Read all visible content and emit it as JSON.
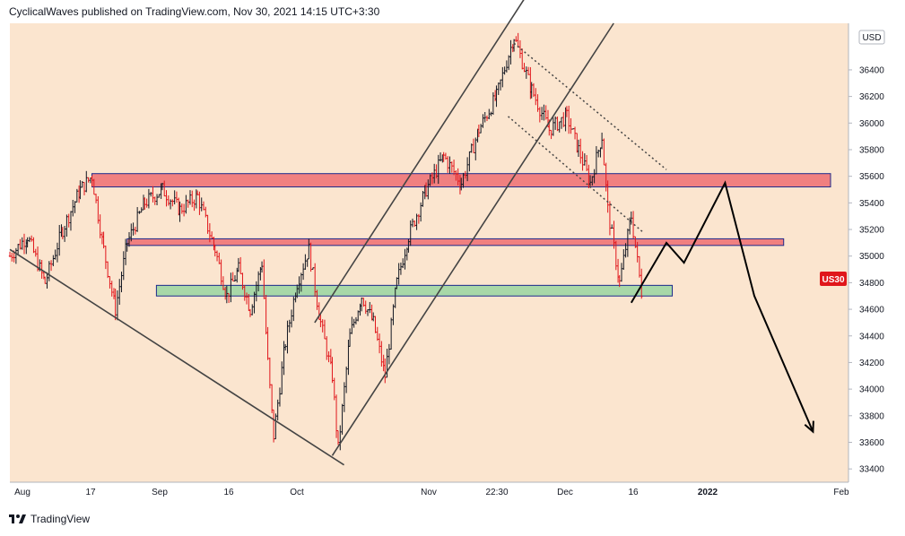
{
  "header": {
    "author": "CyclicalWaves",
    "published_text": "published on TradingView.com, Nov 30, 2021 14:15 UTC+3:30"
  },
  "footer": {
    "brand": "TradingView"
  },
  "colors": {
    "background": "#fbe5cf",
    "up_bar": "#131722",
    "down_bar": "#e0161b",
    "resistance_zone": "#f08080",
    "support_zone": "#a8d8a8",
    "zone_border": "#1c2a8c",
    "price_badge": "#e0161b",
    "trend_line": "#444444"
  },
  "chart_data": {
    "type": "candlestick",
    "symbol": "US30",
    "currency_label": "USD",
    "last_price_label": "US30",
    "y_ticks": [
      33400,
      33600,
      33800,
      34000,
      34200,
      34400,
      34600,
      34800,
      35000,
      35200,
      35400,
      35600,
      35800,
      36000,
      36200,
      36400
    ],
    "ylim": [
      33300,
      36750
    ],
    "x_labels": [
      "Aug",
      "17",
      "Sep",
      "16",
      "Oct",
      "Nov",
      "22:30",
      "Dec",
      "16",
      "2022",
      "Feb"
    ],
    "x_label_bold": [
      "2022"
    ],
    "path_points": [
      [
        0,
        35000
      ],
      [
        3,
        35150
      ],
      [
        6,
        34800
      ],
      [
        9,
        35200
      ],
      [
        12,
        35500
      ],
      [
        14,
        35600
      ],
      [
        16,
        35050
      ],
      [
        18,
        34600
      ],
      [
        20,
        35100
      ],
      [
        23,
        35400
      ],
      [
        26,
        35500
      ],
      [
        29,
        35350
      ],
      [
        32,
        35450
      ],
      [
        35,
        35050
      ],
      [
        37,
        34700
      ],
      [
        39,
        34900
      ],
      [
        41,
        34600
      ],
      [
        43,
        34950
      ],
      [
        44,
        34200
      ],
      [
        45,
        33650
      ],
      [
        47,
        34350
      ],
      [
        49,
        34800
      ],
      [
        51,
        35050
      ],
      [
        53,
        34500
      ],
      [
        55,
        34100
      ],
      [
        56,
        33550
      ],
      [
        58,
        34400
      ],
      [
        60,
        34700
      ],
      [
        62,
        34500
      ],
      [
        64,
        34100
      ],
      [
        66,
        34800
      ],
      [
        68,
        35150
      ],
      [
        71,
        35500
      ],
      [
        74,
        35750
      ],
      [
        77,
        35550
      ],
      [
        80,
        35950
      ],
      [
        83,
        36200
      ],
      [
        86,
        36650
      ],
      [
        89,
        36250
      ],
      [
        92,
        35950
      ],
      [
        95,
        36050
      ],
      [
        97,
        35800
      ],
      [
        99,
        35550
      ],
      [
        101,
        35900
      ],
      [
        102,
        35350
      ],
      [
        104,
        34800
      ],
      [
        106,
        35300
      ],
      [
        108,
        34650
      ]
    ],
    "zones": [
      {
        "name": "upper-resistance",
        "kind": "resistance",
        "low": 35520,
        "high": 35620,
        "from": 14,
        "to": 140
      },
      {
        "name": "middle-resistance",
        "kind": "resistance",
        "low": 35080,
        "high": 35130,
        "from": 20,
        "to": 132
      },
      {
        "name": "support",
        "kind": "support",
        "low": 34700,
        "high": 34780,
        "from": 25,
        "to": 113
      }
    ],
    "trend_lines": [
      {
        "name": "lower-wedge-line",
        "style": "solid",
        "from": [
          0,
          35050
        ],
        "to": [
          57,
          33430
        ]
      },
      {
        "name": "channel-upper",
        "style": "solid",
        "from": [
          52,
          34500
        ],
        "to": [
          88,
          36950
        ]
      },
      {
        "name": "channel-lower",
        "style": "solid",
        "from": [
          55,
          33500
        ],
        "to": [
          103,
          36750
        ]
      },
      {
        "name": "descending-dotted-upper",
        "style": "dotted",
        "from": [
          86,
          36600
        ],
        "to": [
          112,
          35650
        ]
      },
      {
        "name": "descending-dotted-lower",
        "style": "dotted",
        "from": [
          85,
          36050
        ],
        "to": [
          108,
          35180
        ]
      }
    ],
    "projection": [
      [
        106,
        34650
      ],
      [
        112,
        35100
      ],
      [
        115,
        34950
      ],
      [
        122,
        35550
      ],
      [
        127,
        34700
      ],
      [
        137,
        33680
      ]
    ]
  }
}
